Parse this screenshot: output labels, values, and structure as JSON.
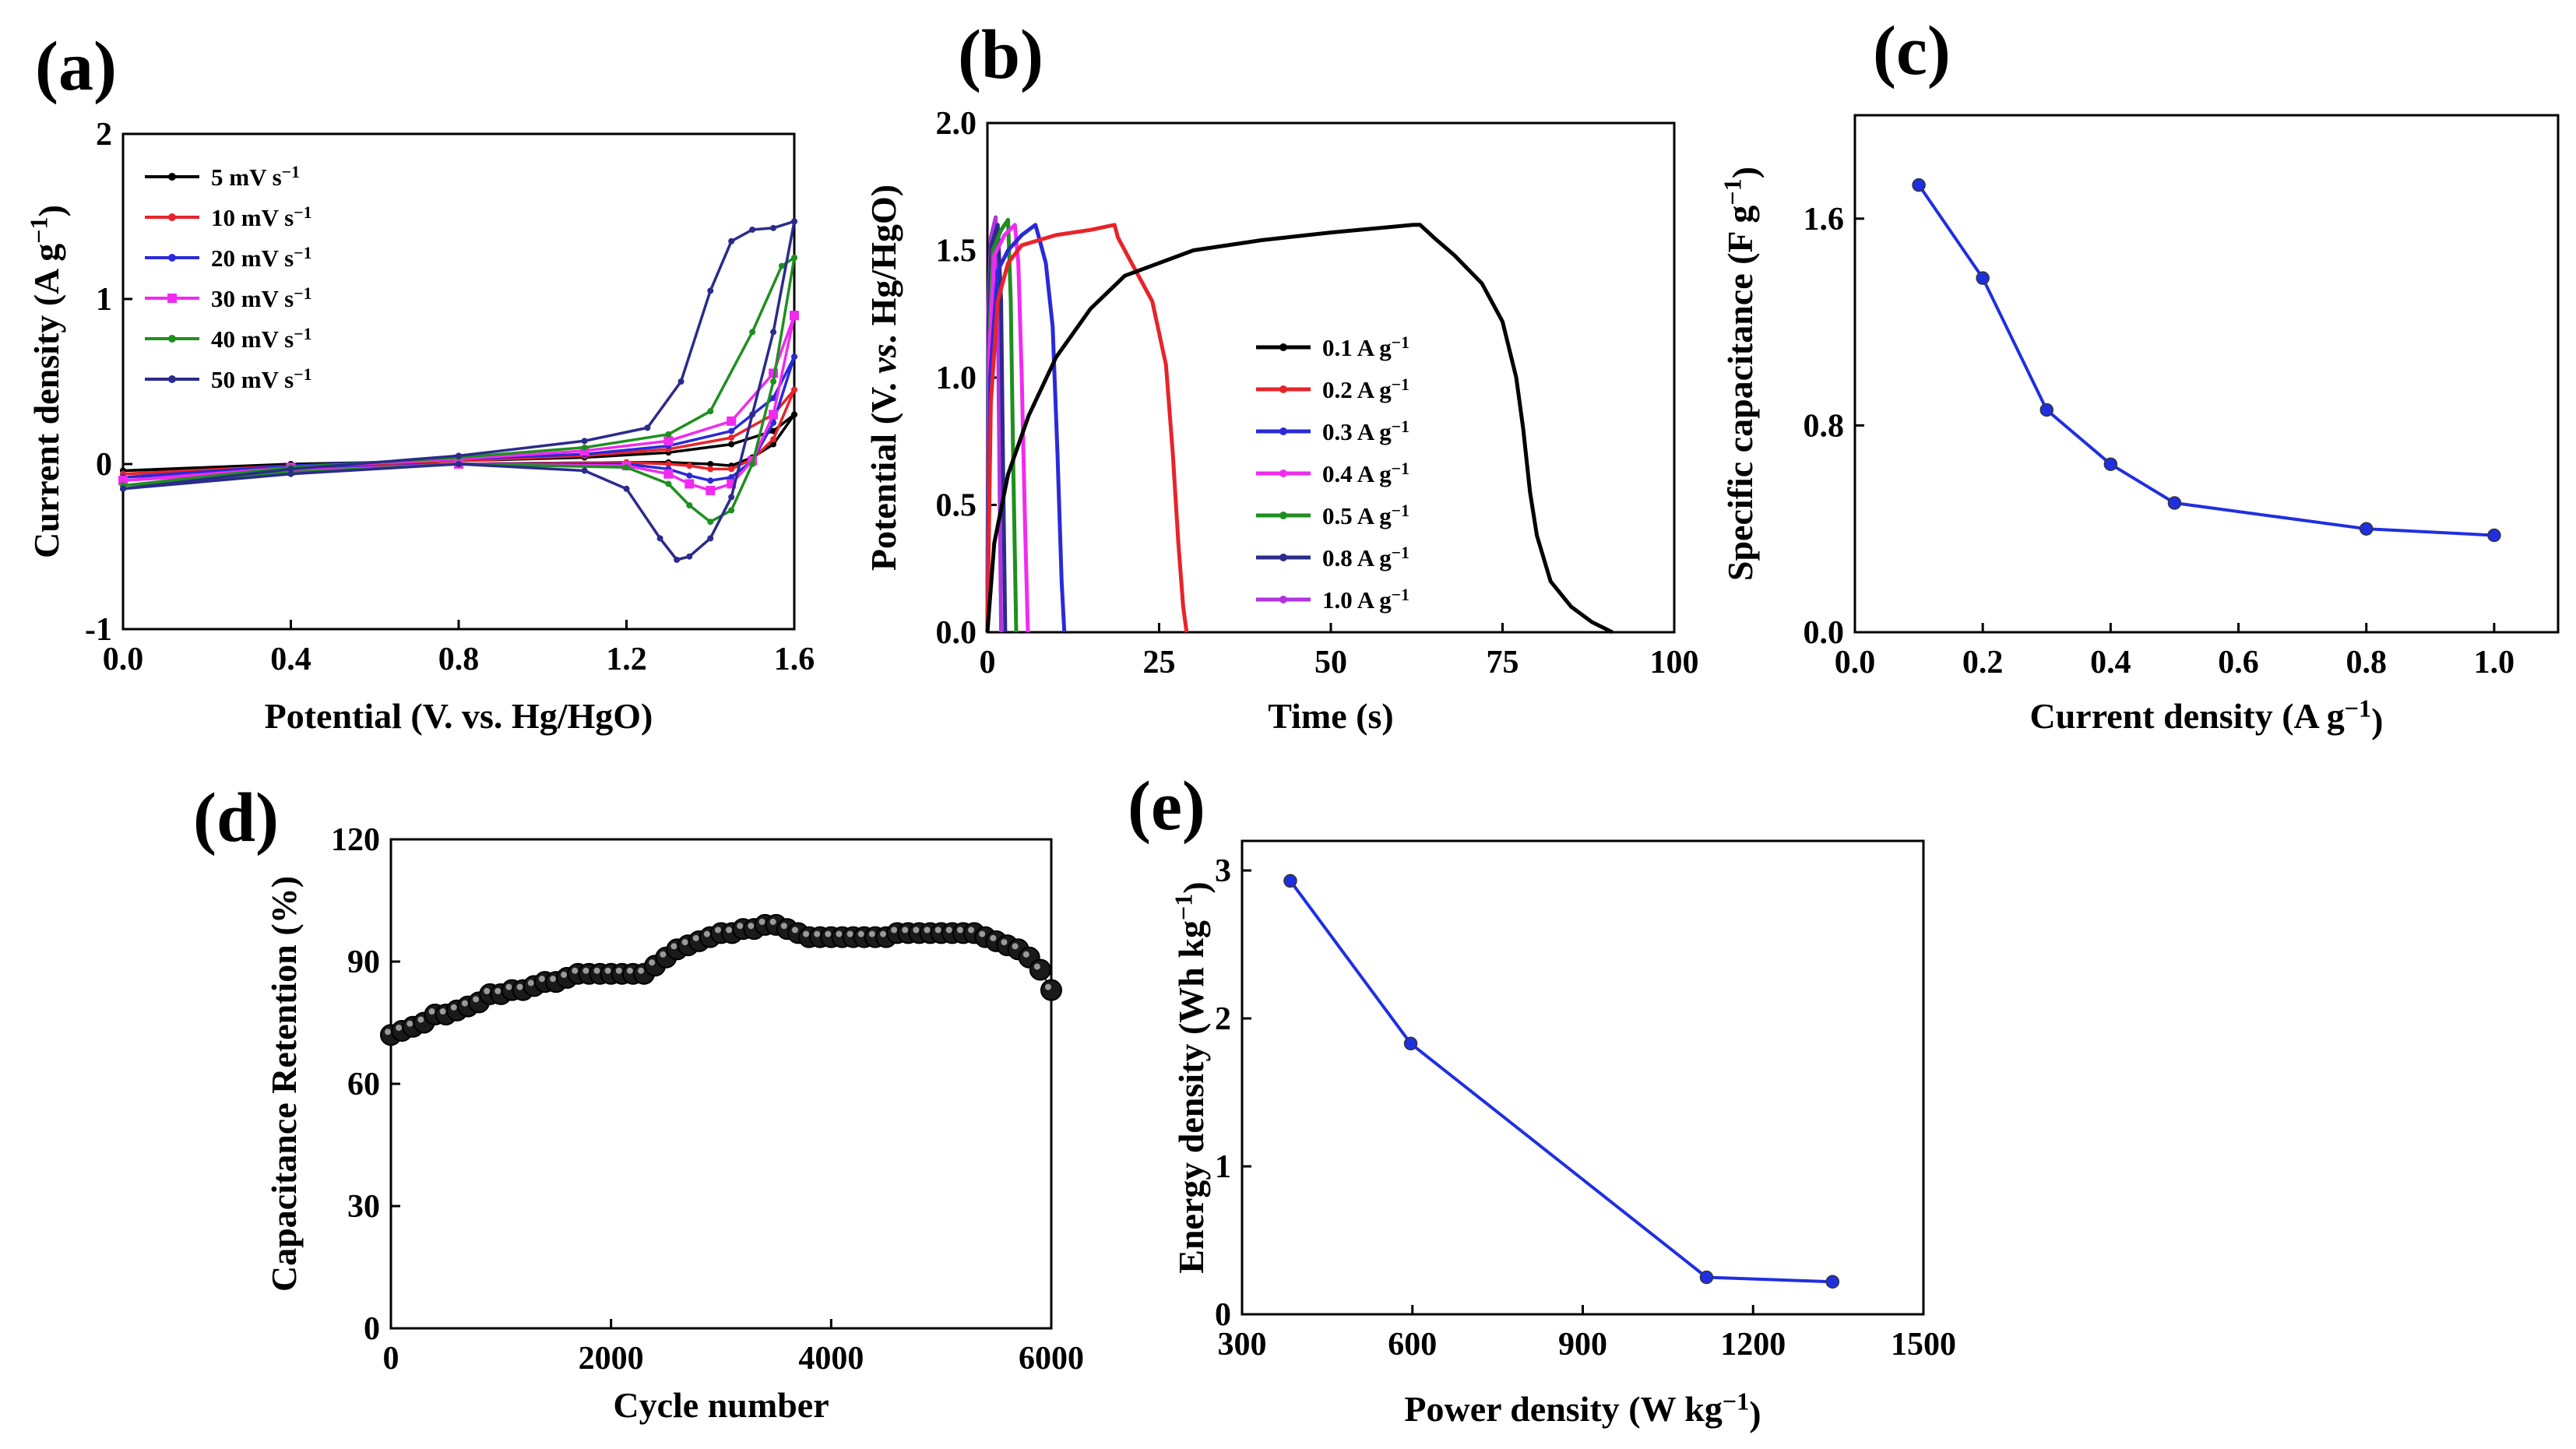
{
  "chart_data": [
    {
      "id": "a",
      "panel_label": "(a)",
      "type": "line",
      "xlabel": "Potential (V. vs. Hg/HgO)",
      "ylabel": "Current density (A g",
      "ylabel_sup": "−1",
      "ylabel_end": ")",
      "xlim": [
        0,
        1.6
      ],
      "ylim": [
        -1,
        2
      ],
      "xticks": [
        0,
        0.4,
        0.8,
        1.2,
        1.6
      ],
      "xtick_labels": [
        "0.0",
        "0.4",
        "0.8",
        "1.2",
        "1.6"
      ],
      "yticks": [
        -1,
        0,
        1,
        2
      ],
      "ytick_labels": [
        "-1",
        "0",
        "1",
        "2"
      ],
      "legend_position": "top-left",
      "series": [
        {
          "name": "5 mV s",
          "sup": "−1",
          "color": "#000000",
          "marker": "dot",
          "anodic": {
            "x": [
              0,
              0.4,
              0.8,
              1.1,
              1.3,
              1.45,
              1.55,
              1.6
            ],
            "y": [
              -0.04,
              0.0,
              0.02,
              0.04,
              0.07,
              0.12,
              0.2,
              0.3
            ]
          },
          "cathodic": {
            "x": [
              1.6,
              1.55,
              1.5,
              1.45,
              1.4,
              1.3,
              1.2,
              0.8,
              0.4,
              0
            ],
            "y": [
              0.3,
              0.12,
              0.04,
              -0.01,
              0.0,
              0.01,
              0.01,
              0.0,
              -0.01,
              -0.04
            ]
          }
        },
        {
          "name": "10 mV s",
          "sup": "−1",
          "color": "#e8232a",
          "marker": "dot",
          "anodic": {
            "x": [
              0,
              0.4,
              0.8,
              1.1,
              1.3,
              1.45,
              1.55,
              1.6
            ],
            "y": [
              -0.06,
              -0.01,
              0.02,
              0.05,
              0.09,
              0.16,
              0.3,
              0.45
            ]
          },
          "cathodic": {
            "x": [
              1.6,
              1.55,
              1.5,
              1.45,
              1.4,
              1.35,
              1.3,
              1.2,
              0.8,
              0.4,
              0
            ],
            "y": [
              0.45,
              0.15,
              0.03,
              -0.03,
              -0.03,
              -0.01,
              0.0,
              0.01,
              0.0,
              -0.02,
              -0.06
            ]
          }
        },
        {
          "name": "20 mV s",
          "sup": "−1",
          "color": "#2a2ad8",
          "marker": "dot",
          "anodic": {
            "x": [
              0,
              0.4,
              0.8,
              1.1,
              1.3,
              1.45,
              1.55,
              1.6
            ],
            "y": [
              -0.08,
              -0.01,
              0.03,
              0.06,
              0.11,
              0.2,
              0.4,
              0.65
            ]
          },
          "cathodic": {
            "x": [
              1.6,
              1.55,
              1.5,
              1.45,
              1.4,
              1.35,
              1.3,
              1.2,
              0.8,
              0.4,
              0
            ],
            "y": [
              0.65,
              0.25,
              0.02,
              -0.08,
              -0.1,
              -0.07,
              -0.03,
              0.0,
              0.0,
              -0.03,
              -0.08
            ]
          }
        },
        {
          "name": "30 mV s",
          "sup": "−1",
          "color": "#f02bf0",
          "marker": "square",
          "anodic": {
            "x": [
              0,
              0.4,
              0.8,
              1.1,
              1.3,
              1.45,
              1.55,
              1.6
            ],
            "y": [
              -0.1,
              -0.02,
              0.03,
              0.08,
              0.14,
              0.26,
              0.55,
              0.9
            ]
          },
          "cathodic": {
            "x": [
              1.6,
              1.55,
              1.5,
              1.45,
              1.4,
              1.35,
              1.3,
              1.2,
              0.8,
              0.4,
              0
            ],
            "y": [
              0.9,
              0.3,
              0.02,
              -0.12,
              -0.16,
              -0.12,
              -0.06,
              -0.01,
              0.0,
              -0.04,
              -0.1
            ]
          }
        },
        {
          "name": "40 mV s",
          "sup": "−1",
          "color": "#1f8f1f",
          "marker": "dot",
          "anodic": {
            "x": [
              0,
              0.4,
              0.8,
              1.1,
              1.3,
              1.4,
              1.5,
              1.57,
              1.6
            ],
            "y": [
              -0.13,
              -0.02,
              0.04,
              0.1,
              0.18,
              0.32,
              0.8,
              1.2,
              1.25
            ]
          },
          "cathodic": {
            "x": [
              1.6,
              1.55,
              1.5,
              1.45,
              1.4,
              1.35,
              1.3,
              1.2,
              0.8,
              0.4,
              0
            ],
            "y": [
              1.25,
              0.5,
              0.0,
              -0.28,
              -0.35,
              -0.25,
              -0.12,
              -0.02,
              0.0,
              -0.05,
              -0.13
            ]
          }
        },
        {
          "name": "50 mV s",
          "sup": "−1",
          "color": "#2b2b8c",
          "marker": "dot",
          "anodic": {
            "x": [
              0,
              0.4,
              0.8,
              1.1,
              1.25,
              1.33,
              1.4,
              1.45,
              1.5,
              1.55,
              1.6
            ],
            "y": [
              -0.15,
              -0.03,
              0.05,
              0.14,
              0.22,
              0.5,
              1.05,
              1.35,
              1.42,
              1.43,
              1.47
            ]
          },
          "cathodic": {
            "x": [
              1.6,
              1.55,
              1.5,
              1.45,
              1.4,
              1.35,
              1.32,
              1.28,
              1.2,
              1.1,
              0.8,
              0.4,
              0
            ],
            "y": [
              1.47,
              0.8,
              0.3,
              -0.2,
              -0.45,
              -0.56,
              -0.58,
              -0.45,
              -0.15,
              -0.04,
              0.0,
              -0.06,
              -0.15
            ]
          }
        }
      ]
    },
    {
      "id": "b",
      "panel_label": "(b)",
      "type": "line",
      "xlabel": "Time (s)",
      "ylabel_pre": "Potential (V. ",
      "ylabel_italic": "vs",
      "ylabel_post": ". Hg/HgO)",
      "xlim": [
        0,
        100
      ],
      "ylim": [
        0,
        2
      ],
      "xticks": [
        0,
        25,
        50,
        75,
        100
      ],
      "xtick_labels": [
        "0",
        "25",
        "50",
        "75",
        "100"
      ],
      "yticks": [
        0,
        0.5,
        1,
        1.5,
        2
      ],
      "ytick_labels": [
        "0.0",
        "0.5",
        "1.0",
        "1.5",
        "2.0"
      ],
      "legend_position": "center-right",
      "series": [
        {
          "name": "0.1 A g",
          "sup": "−1",
          "color": "#000000",
          "x": [
            0,
            1,
            3,
            6,
            10,
            15,
            20,
            30,
            40,
            50,
            62,
            63,
            65,
            68,
            72,
            75,
            77,
            78,
            79,
            80,
            82,
            85,
            88,
            91
          ],
          "y": [
            0,
            0.35,
            0.62,
            0.85,
            1.08,
            1.27,
            1.4,
            1.5,
            1.54,
            1.57,
            1.6,
            1.6,
            1.55,
            1.48,
            1.37,
            1.22,
            1.0,
            0.8,
            0.55,
            0.38,
            0.2,
            0.1,
            0.04,
            0
          ]
        },
        {
          "name": "0.2 A g",
          "sup": "−1",
          "color": "#e8232a",
          "x": [
            0,
            0.5,
            1.5,
            3,
            5,
            10,
            15,
            18.5,
            19,
            21,
            24,
            26,
            27,
            27.8,
            28.5,
            29
          ],
          "y": [
            0,
            0.9,
            1.3,
            1.45,
            1.52,
            1.56,
            1.58,
            1.6,
            1.55,
            1.45,
            1.3,
            1.05,
            0.7,
            0.35,
            0.1,
            0
          ]
        },
        {
          "name": "0.3 A g",
          "sup": "−1",
          "color": "#2a2ad8",
          "x": [
            0,
            0.4,
            1.5,
            3,
            5,
            7,
            7.5,
            8.5,
            9.5,
            10.2,
            10.8,
            11.2
          ],
          "y": [
            0,
            1.0,
            1.42,
            1.5,
            1.56,
            1.6,
            1.55,
            1.45,
            1.2,
            0.7,
            0.2,
            0
          ]
        },
        {
          "name": "0.4 A g",
          "sup": "−1",
          "color": "#f02bf0",
          "x": [
            0,
            0.3,
            1,
            2.5,
            4,
            4.5,
            5,
            5.5,
            5.9
          ],
          "y": [
            0,
            1.1,
            1.48,
            1.56,
            1.6,
            1.45,
            1.0,
            0.4,
            0
          ]
        },
        {
          "name": "0.5 A g",
          "sup": "−1",
          "color": "#1f8f1f",
          "x": [
            0,
            0.2,
            0.8,
            2,
            3,
            3.4,
            3.8,
            4.2
          ],
          "y": [
            0,
            1.1,
            1.5,
            1.58,
            1.62,
            1.3,
            0.6,
            0
          ]
        },
        {
          "name": "0.8 A g",
          "sup": "−1",
          "color": "#2b2b8c",
          "x": [
            0,
            0.15,
            0.6,
            1.5,
            2.0,
            2.3,
            2.6
          ],
          "y": [
            0,
            1.2,
            1.52,
            1.6,
            1.3,
            0.6,
            0
          ]
        },
        {
          "name": "1.0 A g",
          "sup": "−1",
          "color": "#b233e0",
          "x": [
            0,
            0.1,
            0.5,
            1.2,
            1.5,
            1.8,
            2.0
          ],
          "y": [
            0,
            1.25,
            1.55,
            1.63,
            1.3,
            0.5,
            0
          ]
        }
      ]
    },
    {
      "id": "c",
      "panel_label": "(c)",
      "type": "line",
      "xlabel": "Current density (A g",
      "xlabel_sup": "−1",
      "xlabel_end": ")",
      "ylabel": "Specific capacitance (F g",
      "ylabel_sup": "−1",
      "ylabel_end": ")",
      "xlim": [
        0,
        1.1
      ],
      "ylim": [
        0,
        2.0
      ],
      "xticks": [
        0,
        0.2,
        0.4,
        0.6,
        0.8,
        1.0
      ],
      "xtick_labels": [
        "0.0",
        "0.2",
        "0.4",
        "0.6",
        "0.8",
        "1.0"
      ],
      "yticks": [
        0,
        0.8,
        1.6
      ],
      "ytick_labels": [
        "0.0",
        "0.8",
        "1.6"
      ],
      "series": [
        {
          "name": "Specific capacitance",
          "color": "#1f2fe0",
          "x": [
            0.1,
            0.2,
            0.3,
            0.4,
            0.5,
            0.8,
            1.0
          ],
          "y": [
            1.73,
            1.37,
            0.86,
            0.65,
            0.5,
            0.4,
            0.375
          ]
        }
      ]
    },
    {
      "id": "d",
      "panel_label": "(d)",
      "type": "scatter",
      "xlabel": "Cycle number",
      "ylabel": "Capacitance Retention (%)",
      "xlim": [
        0,
        6000
      ],
      "ylim": [
        0,
        120
      ],
      "xticks": [
        0,
        2000,
        4000,
        6000
      ],
      "xtick_labels": [
        "0",
        "2000",
        "4000",
        "6000"
      ],
      "yticks": [
        0,
        30,
        60,
        90,
        120
      ],
      "ytick_labels": [
        "0",
        "30",
        "60",
        "90",
        "120"
      ],
      "series": [
        {
          "name": "Capacitance Retention",
          "color": "#000000",
          "x": [
            0,
            100,
            200,
            300,
            400,
            500,
            600,
            700,
            800,
            900,
            1000,
            1100,
            1200,
            1300,
            1400,
            1500,
            1600,
            1700,
            1800,
            1900,
            2000,
            2100,
            2200,
            2300,
            2400,
            2500,
            2600,
            2700,
            2800,
            2900,
            3000,
            3100,
            3200,
            3300,
            3400,
            3500,
            3600,
            3700,
            3800,
            3900,
            4000,
            4100,
            4200,
            4300,
            4400,
            4500,
            4600,
            4700,
            4800,
            4900,
            5000,
            5100,
            5200,
            5300,
            5400,
            5500,
            5600,
            5700,
            5800,
            5900,
            6000
          ],
          "y": [
            72,
            73,
            74,
            75,
            77,
            77,
            78,
            79,
            80,
            82,
            82,
            83,
            83,
            84,
            85,
            85,
            86,
            87,
            87,
            87,
            87,
            87,
            87,
            87,
            89,
            91,
            93,
            94,
            95,
            96,
            97,
            97,
            98,
            98,
            99,
            99,
            98,
            97,
            96,
            96,
            96,
            96,
            96,
            96,
            96,
            96,
            97,
            97,
            97,
            97,
            97,
            97,
            97,
            97,
            96,
            95,
            94,
            93,
            91,
            88,
            83
          ]
        }
      ]
    },
    {
      "id": "e",
      "panel_label": "(e)",
      "type": "line",
      "xlabel": "Power density (W kg",
      "xlabel_sup": "−1",
      "xlabel_end": ")",
      "ylabel": "Energy density (Wh kg",
      "ylabel_sup": "−1",
      "ylabel_end": ")",
      "xlim": [
        300,
        1500
      ],
      "ylim": [
        0,
        3.2
      ],
      "xticks": [
        300,
        600,
        900,
        1200,
        1500
      ],
      "xtick_labels": [
        "300",
        "600",
        "900",
        "1200",
        "1500"
      ],
      "yticks": [
        0,
        1,
        2,
        3
      ],
      "ytick_labels": [
        "0",
        "1",
        "2",
        "3"
      ],
      "series": [
        {
          "name": "Energy density",
          "color": "#1f2fe0",
          "x": [
            385,
            597,
            1118,
            1340
          ],
          "y": [
            2.93,
            1.83,
            0.25,
            0.22
          ]
        }
      ]
    }
  ]
}
